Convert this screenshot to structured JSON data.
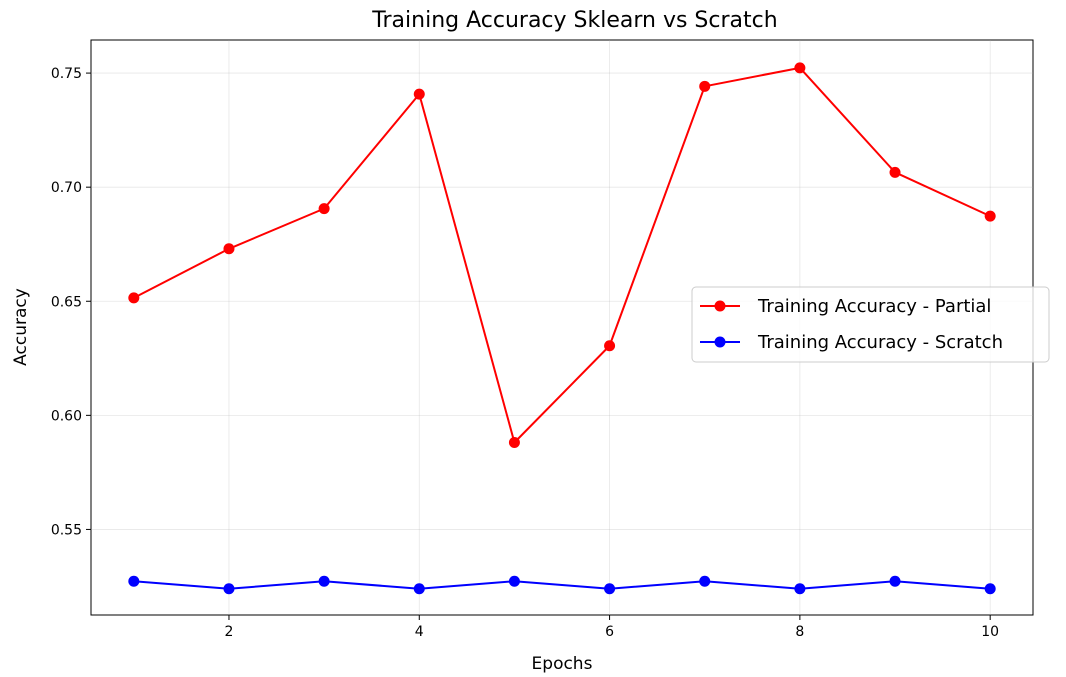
{
  "chart_data": {
    "type": "line",
    "title": "Training Accuracy Sklearn vs Scratch",
    "xlabel": "Epochs",
    "ylabel": "Accuracy",
    "x": [
      1,
      2,
      3,
      4,
      5,
      6,
      7,
      8,
      9,
      10
    ],
    "xlim": [
      0.55,
      10.45
    ],
    "ylim": [
      0.5125,
      0.7645
    ],
    "xticks": [
      2,
      4,
      6,
      8,
      10
    ],
    "yticks": [
      0.55,
      0.6,
      0.65,
      0.7,
      0.75
    ],
    "ytick_labels": [
      "0.55",
      "0.60",
      "0.65",
      "0.70",
      "0.75"
    ],
    "grid": true,
    "legend_position": "center-right",
    "series": [
      {
        "name": "Training Accuracy - Partial",
        "color": "#ff0000",
        "marker": "circle",
        "values": [
          0.6515,
          0.673,
          0.6906,
          0.7408,
          0.5881,
          0.6305,
          0.7442,
          0.7523,
          0.7065,
          0.6873
        ]
      },
      {
        "name": "Training Accuracy - Scratch",
        "color": "#0000ff",
        "marker": "circle",
        "values": [
          0.5273,
          0.524,
          0.5273,
          0.524,
          0.5273,
          0.524,
          0.5273,
          0.524,
          0.5273,
          0.524
        ]
      }
    ]
  }
}
